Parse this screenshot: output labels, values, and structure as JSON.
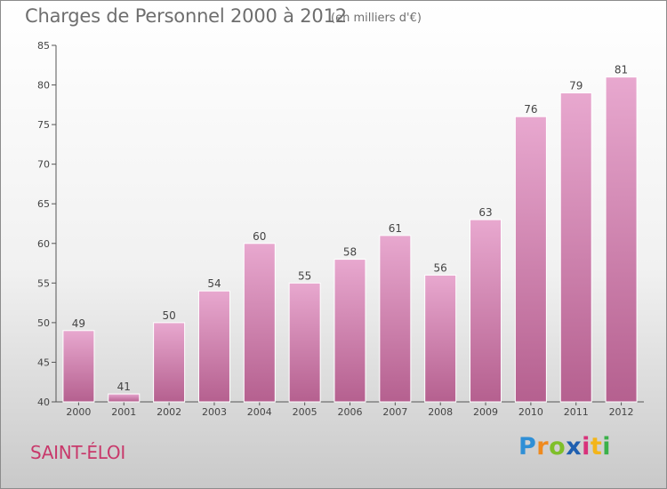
{
  "header": {
    "title": "Charges de Personnel 2000 à 2012",
    "unit": "(en milliers d'€)"
  },
  "footer": {
    "city": "SAINT-ÉLOI",
    "logo": "Proxiti"
  },
  "colors": {
    "bar_top": "#e8a8cf",
    "bar_bottom": "#b5608f",
    "city": "#c8396b"
  },
  "chart_data": {
    "type": "bar",
    "categories": [
      "2000",
      "2001",
      "2002",
      "2003",
      "2004",
      "2005",
      "2006",
      "2007",
      "2008",
      "2009",
      "2010",
      "2011",
      "2012"
    ],
    "values": [
      49,
      41,
      50,
      54,
      60,
      55,
      58,
      61,
      56,
      63,
      76,
      79,
      81
    ],
    "title": "Charges de Personnel 2000 à 2012",
    "subtitle": "(en milliers d'€)",
    "xlabel": "",
    "ylabel": "",
    "ylim": [
      40,
      85
    ],
    "yticks": [
      40,
      45,
      50,
      55,
      60,
      65,
      70,
      75,
      80,
      85
    ],
    "grid": false,
    "data_labels": true
  }
}
